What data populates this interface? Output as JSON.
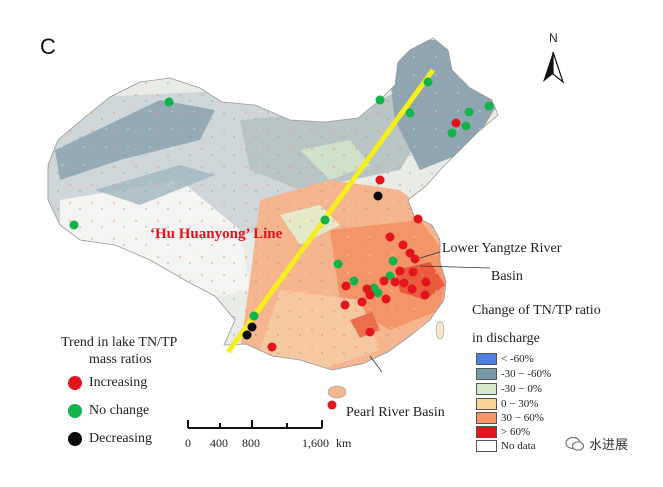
{
  "panel_label": "C",
  "north_label": "N",
  "hu_line_label": "‘Hu Huanyong’ Line",
  "annotations": {
    "lower_yangtze_line1": "Lower Yangtze River",
    "lower_yangtze_line2": "Basin",
    "pearl_river": "Pearl River Basin"
  },
  "trend_legend": {
    "title_line1": "Trend in lake TN/TP",
    "title_line2": "mass ratios",
    "items": [
      {
        "label": "Increasing",
        "color": "#e3141c"
      },
      {
        "label": "No change",
        "color": "#12b34b"
      },
      {
        "label": "Decreasing",
        "color": "#0a0a0a"
      }
    ]
  },
  "change_legend": {
    "title_line1": "Change of TN/TP ratio",
    "title_line2": "in discharge",
    "items": [
      {
        "label": "< -60%",
        "color": "#4f7fe0"
      },
      {
        "label": "-30 − -60%",
        "color": "#7a99a8"
      },
      {
        "label": "-30 − 0%",
        "color": "#d6e9cc"
      },
      {
        "label": "0 − 30%",
        "color": "#f6d49a"
      },
      {
        "label": "30 − 60%",
        "color": "#f49569"
      },
      {
        "label": "> 60%",
        "color": "#e3141c"
      },
      {
        "label": "No data",
        "color": "#ffffff"
      }
    ]
  },
  "scale_bar": {
    "labels": [
      "0",
      "400",
      "800",
      "1,600"
    ],
    "unit": "km"
  },
  "watermark": "水进展",
  "colors": {
    "hu_line": "#f4ee1e",
    "increasing": "#e3141c",
    "no_change": "#12b34b",
    "decreasing": "#0a0a0a"
  }
}
